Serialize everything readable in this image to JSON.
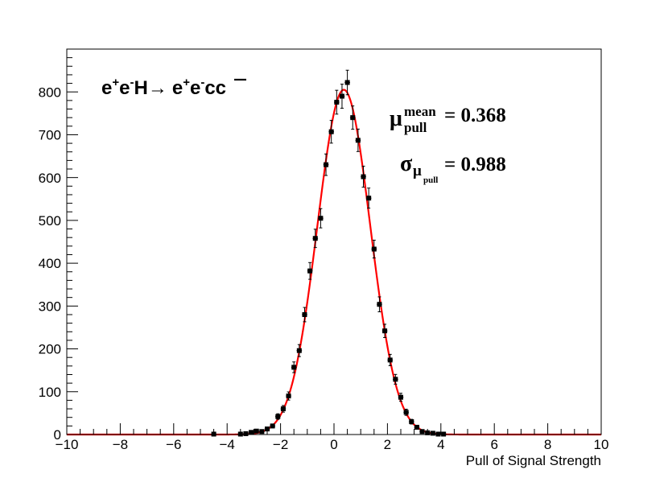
{
  "chart_data": {
    "type": "scatter",
    "xlabel": "Pull of Signal Strength",
    "ylabel": "",
    "xlim": [
      -10,
      10
    ],
    "ylim": [
      0,
      900
    ],
    "x_ticks": [
      "−10",
      "−8",
      "−6",
      "−4",
      "−2",
      "0",
      "2",
      "4",
      "6",
      "8",
      "10"
    ],
    "y_ticks": [
      "0",
      "100",
      "200",
      "300",
      "400",
      "500",
      "600",
      "700",
      "800"
    ],
    "grid": false,
    "process_label": {
      "e1": "e",
      "s1": "+",
      "e2": "e",
      "s2": "-",
      "h": "H",
      "arrow": "→",
      "e3": "e",
      "s3": "+",
      "e4": "e",
      "s4": "-",
      "c": "c",
      "cbar": "c"
    },
    "stats": {
      "mu_symbol": "μ",
      "mu_sup": "mean",
      "mu_sub": "pull",
      "mu_value": "= 0.368",
      "sigma_symbol": "σ",
      "sigma_sub": "μ",
      "sigma_subsub": "pull",
      "sigma_value": "= 0.988"
    },
    "series": [
      {
        "type": "points_with_errors",
        "color": "#000000",
        "x": [
          -4.5,
          -3.5,
          -3.3,
          -3.1,
          -2.9,
          -2.7,
          -2.5,
          -2.3,
          -2.1,
          -1.9,
          -1.7,
          -1.5,
          -1.3,
          -1.1,
          -0.9,
          -0.7,
          -0.5,
          -0.3,
          -0.1,
          0.1,
          0.3,
          0.5,
          0.7,
          0.9,
          1.1,
          1.3,
          1.5,
          1.7,
          1.9,
          2.1,
          2.3,
          2.5,
          2.7,
          2.9,
          3.1,
          3.3,
          3.5,
          3.7,
          3.9,
          4.1
        ],
        "y": [
          1,
          1,
          2,
          5,
          8,
          7,
          13,
          20,
          42,
          60,
          90,
          157,
          196,
          280,
          382,
          458,
          505,
          630,
          707,
          776,
          790,
          822,
          740,
          687,
          602,
          552,
          433,
          304,
          242,
          174,
          129,
          87,
          52,
          30,
          17,
          7,
          4,
          3,
          1,
          1
        ]
      },
      {
        "type": "fit",
        "color": "#ff0000",
        "function": "gaussian",
        "amplitude": 805,
        "mean": 0.368,
        "sigma": 0.988
      }
    ]
  }
}
